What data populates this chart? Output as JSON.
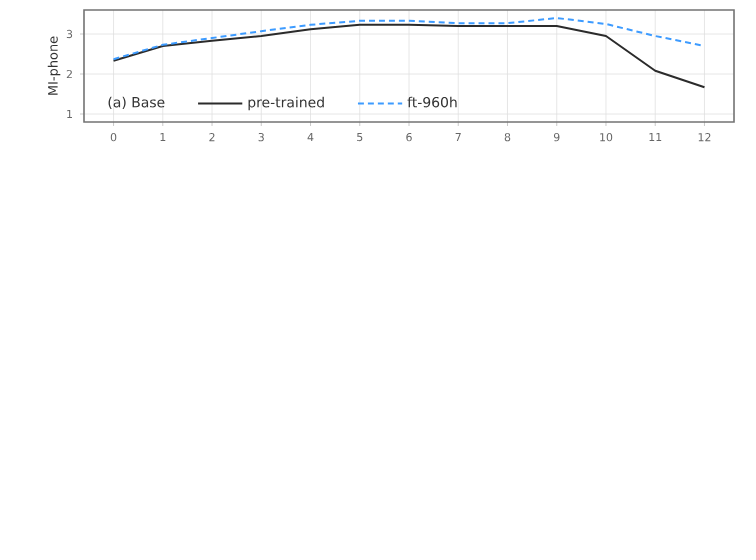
{
  "chart_data": {
    "type": "line",
    "ylabel": "MI-phone",
    "legend_title": "(a) Base",
    "x": [
      0,
      1,
      2,
      3,
      4,
      5,
      6,
      7,
      8,
      9,
      10,
      11,
      12
    ],
    "series": [
      {
        "name": "pre-trained",
        "color": "#2b2b2b",
        "line_style": "solid",
        "values": [
          2.33,
          2.7,
          2.83,
          2.95,
          3.12,
          3.23,
          3.23,
          3.2,
          3.2,
          3.2,
          2.95,
          2.08,
          1.67
        ]
      },
      {
        "name": "ft-960h",
        "color": "#3d9bff",
        "line_style": "dashed",
        "values": [
          2.37,
          2.73,
          2.9,
          3.07,
          3.23,
          3.33,
          3.33,
          3.27,
          3.27,
          3.4,
          3.25,
          2.95,
          2.7
        ]
      }
    ],
    "xlim": [
      -0.6,
      12.6
    ],
    "ylim": [
      0.8,
      3.6
    ],
    "xticks": [
      0,
      1,
      2,
      3,
      4,
      5,
      6,
      7,
      8,
      9,
      10,
      11,
      12
    ],
    "yticks": [
      1,
      2,
      3
    ],
    "grid": true,
    "legend": "bottom",
    "marker": "none"
  }
}
